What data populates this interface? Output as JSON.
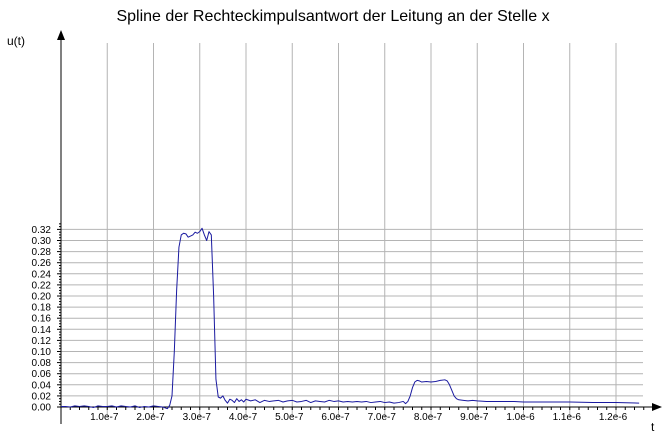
{
  "chart_data": {
    "type": "line",
    "title": "Spline der Rechteckimpulsantwort der Leitung an der Stelle x",
    "xlabel": "t",
    "ylabel": "u(t)",
    "xlim": [
      0,
      1.26e-06
    ],
    "ylim": [
      -0.002,
      0.33
    ],
    "grid": true,
    "x_ticks": [
      1e-07,
      2e-07,
      3e-07,
      4e-07,
      5e-07,
      6e-07,
      7e-07,
      8e-07,
      9e-07,
      1e-06,
      1.1e-06,
      1.2e-06
    ],
    "x_tick_labels": [
      "1.0e-7",
      "2.0e-7",
      "3.0e-7",
      "4.0e-7",
      "5.0e-7",
      "6.0e-7",
      "7.0e-7",
      "8.0e-7",
      "9.0e-7",
      "1.0e-6",
      "1.1e-6",
      "1.2e-6"
    ],
    "y_ticks": [
      0,
      0.02,
      0.04,
      0.06,
      0.08,
      0.1,
      0.12,
      0.14,
      0.16,
      0.18,
      0.2,
      0.22,
      0.24,
      0.26,
      0.28,
      0.3,
      0.32
    ],
    "y_tick_labels": [
      "0.00",
      "0.02",
      "0.04",
      "0.06",
      "0.08",
      "0.10",
      "0.12",
      "0.14",
      "0.16",
      "0.18",
      "0.20",
      "0.22",
      "0.24",
      "0.26",
      "0.28",
      "0.30",
      "0.32"
    ],
    "colors": {
      "line": "#1a1aa0",
      "grid": "#b4b4b4",
      "axis": "#000000"
    },
    "series": [
      {
        "x": [
          0,
          1e-08,
          2e-08,
          3e-08,
          4e-08,
          5e-08,
          6e-08,
          7e-08,
          8e-08,
          9e-08,
          1e-07,
          1.1e-07,
          1.2e-07,
          1.3e-07,
          1.4e-07,
          1.5e-07,
          1.6e-07,
          1.7e-07,
          1.8e-07,
          1.9e-07,
          2e-07,
          2.1e-07,
          2.2e-07,
          2.3e-07,
          2.35e-07,
          2.4e-07,
          2.45e-07,
          2.5e-07,
          2.55e-07,
          2.6e-07,
          2.65e-07,
          2.7e-07,
          2.75e-07,
          2.8e-07,
          2.85e-07,
          2.9e-07,
          2.95e-07,
          3e-07,
          3.05e-07,
          3.1e-07,
          3.15e-07,
          3.2e-07,
          3.25e-07,
          3.3e-07,
          3.35e-07,
          3.4e-07,
          3.45e-07,
          3.5e-07,
          3.55e-07,
          3.6e-07,
          3.65e-07,
          3.7e-07,
          3.75e-07,
          3.8e-07,
          3.85e-07,
          3.9e-07,
          3.95e-07,
          4e-07,
          4.1e-07,
          4.2e-07,
          4.3e-07,
          4.4e-07,
          4.5e-07,
          4.6e-07,
          4.7e-07,
          4.8e-07,
          4.9e-07,
          5e-07,
          5.1e-07,
          5.2e-07,
          5.3e-07,
          5.4e-07,
          5.5e-07,
          5.6e-07,
          5.7e-07,
          5.8e-07,
          5.9e-07,
          6e-07,
          6.1e-07,
          6.2e-07,
          6.3e-07,
          6.4e-07,
          6.5e-07,
          6.6e-07,
          6.7e-07,
          6.8e-07,
          6.9e-07,
          7e-07,
          7.1e-07,
          7.2e-07,
          7.3e-07,
          7.4e-07,
          7.45e-07,
          7.5e-07,
          7.55e-07,
          7.6e-07,
          7.65e-07,
          7.7e-07,
          7.75e-07,
          7.8e-07,
          7.9e-07,
          8e-07,
          8.1e-07,
          8.2e-07,
          8.3e-07,
          8.35e-07,
          8.4e-07,
          8.45e-07,
          8.5e-07,
          8.55e-07,
          8.6e-07,
          8.7e-07,
          8.8e-07,
          8.9e-07,
          9e-07,
          9.2e-07,
          9.4e-07,
          9.6e-07,
          9.8e-07,
          1e-06,
          1.05e-06,
          1.1e-06,
          1.15e-06,
          1.2e-06,
          1.25e-06
        ],
        "y": [
          0.001,
          0.001,
          0.0,
          0.002,
          0.001,
          0.002,
          0.001,
          -0.001,
          0.002,
          0.001,
          0.001,
          0.002,
          0.0,
          0.002,
          0.001,
          0.0,
          0.002,
          -0.001,
          0.001,
          0.0,
          0.002,
          0.001,
          0.0,
          -0.003,
          0.003,
          0.02,
          0.1,
          0.21,
          0.288,
          0.31,
          0.313,
          0.312,
          0.306,
          0.308,
          0.31,
          0.315,
          0.313,
          0.316,
          0.322,
          0.31,
          0.3,
          0.316,
          0.31,
          0.2,
          0.05,
          0.018,
          0.016,
          0.02,
          0.012,
          0.007,
          0.014,
          0.012,
          0.008,
          0.015,
          0.01,
          0.013,
          0.009,
          0.014,
          0.011,
          0.013,
          0.008,
          0.012,
          0.01,
          0.011,
          0.012,
          0.009,
          0.011,
          0.012,
          0.009,
          0.01,
          0.012,
          0.008,
          0.011,
          0.01,
          0.009,
          0.012,
          0.01,
          0.011,
          0.009,
          0.01,
          0.009,
          0.01,
          0.009,
          0.01,
          0.008,
          0.009,
          0.01,
          0.008,
          0.009,
          0.007,
          0.008,
          0.01,
          0.006,
          0.01,
          0.02,
          0.035,
          0.045,
          0.048,
          0.047,
          0.045,
          0.046,
          0.045,
          0.046,
          0.048,
          0.049,
          0.047,
          0.04,
          0.03,
          0.02,
          0.015,
          0.013,
          0.012,
          0.011,
          0.012,
          0.011,
          0.01,
          0.01,
          0.01,
          0.01,
          0.009,
          0.009,
          0.009,
          0.008,
          0.008,
          0.007
        ]
      }
    ]
  }
}
